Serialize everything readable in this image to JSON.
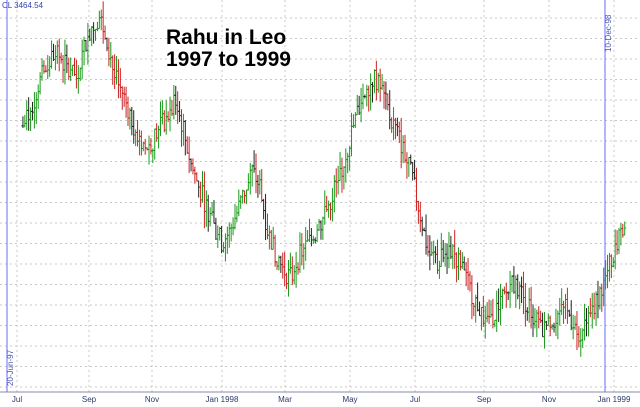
{
  "header": {
    "close_readout": "CL 3464.54"
  },
  "annotation": {
    "line1": "Rahu in Leo",
    "line2": "1997 to 1999"
  },
  "markers": {
    "start_label": "20-Jun-97",
    "end_label": "10-Dec-98"
  },
  "colors": {
    "background": "#ffffff",
    "grid": "#c8c8c8",
    "up_bar": "#1a9a1a",
    "down_bar": "#cc2222",
    "neutral_bar": "#222222",
    "marker_line": "#6a6aff",
    "axis_text": "#2a3a6a"
  },
  "chart_data": {
    "type": "ohlc",
    "title": "",
    "x_tick_labels": [
      "Jul",
      "Sep",
      "Nov",
      "Jan 1998",
      "Mar",
      "May",
      "Jul",
      "Sep",
      "Nov",
      "Jan 1999"
    ],
    "y_axis_labels_visible": false,
    "grid": true,
    "series": [
      {
        "values": [
          [
            1997.46,
            3420
          ],
          [
            1997.48,
            3480
          ],
          [
            1997.5,
            3590
          ],
          [
            1997.52,
            3660
          ],
          [
            1997.54,
            3720
          ],
          [
            1997.56,
            3700
          ],
          [
            1997.58,
            3640
          ],
          [
            1997.6,
            3620
          ],
          [
            1997.62,
            3740
          ],
          [
            1997.64,
            3830
          ],
          [
            1997.66,
            3870
          ],
          [
            1997.68,
            3780
          ],
          [
            1997.7,
            3620
          ],
          [
            1997.72,
            3560
          ],
          [
            1997.74,
            3470
          ],
          [
            1997.76,
            3380
          ],
          [
            1997.78,
            3330
          ],
          [
            1997.8,
            3360
          ],
          [
            1997.82,
            3420
          ],
          [
            1997.84,
            3460
          ],
          [
            1997.86,
            3520
          ],
          [
            1997.88,
            3400
          ],
          [
            1997.9,
            3260
          ],
          [
            1997.92,
            3170
          ],
          [
            1997.94,
            3090
          ],
          [
            1997.96,
            3000
          ],
          [
            1997.98,
            2940
          ],
          [
            1998.0,
            2980
          ],
          [
            1998.02,
            3060
          ],
          [
            1998.04,
            3150
          ],
          [
            1998.06,
            3230
          ],
          [
            1998.08,
            3170
          ],
          [
            1998.1,
            2990
          ],
          [
            1998.12,
            2900
          ],
          [
            1998.14,
            2830
          ],
          [
            1998.16,
            2790
          ],
          [
            1998.18,
            2870
          ],
          [
            1998.2,
            2920
          ],
          [
            1998.22,
            2960
          ],
          [
            1998.24,
            3020
          ],
          [
            1998.26,
            3090
          ],
          [
            1998.28,
            3180
          ],
          [
            1998.3,
            3270
          ],
          [
            1998.32,
            3390
          ],
          [
            1998.34,
            3500
          ],
          [
            1998.36,
            3580
          ],
          [
            1998.38,
            3620
          ],
          [
            1998.4,
            3560
          ],
          [
            1998.42,
            3460
          ],
          [
            1998.44,
            3390
          ],
          [
            1998.46,
            3300
          ],
          [
            1998.48,
            3200
          ],
          [
            1998.5,
            3050
          ],
          [
            1998.52,
            2900
          ],
          [
            1998.54,
            2850
          ],
          [
            1998.56,
            2880
          ],
          [
            1998.58,
            2920
          ],
          [
            1998.6,
            2860
          ],
          [
            1998.62,
            2780
          ],
          [
            1998.64,
            2710
          ],
          [
            1998.66,
            2650
          ],
          [
            1998.68,
            2620
          ],
          [
            1998.7,
            2660
          ],
          [
            1998.72,
            2710
          ],
          [
            1998.74,
            2770
          ],
          [
            1998.76,
            2740
          ],
          [
            1998.78,
            2680
          ],
          [
            1998.8,
            2620
          ],
          [
            1998.82,
            2570
          ],
          [
            1998.84,
            2600
          ],
          [
            1998.86,
            2640
          ],
          [
            1998.88,
            2660
          ],
          [
            1998.9,
            2610
          ],
          [
            1998.92,
            2560
          ],
          [
            1998.94,
            2620
          ],
          [
            1998.96,
            2700
          ],
          [
            1998.98,
            2770
          ],
          [
            1999.0,
            2860
          ],
          [
            1999.02,
            2980
          ],
          [
            1999.04,
            3010
          ]
        ]
      }
    ]
  }
}
